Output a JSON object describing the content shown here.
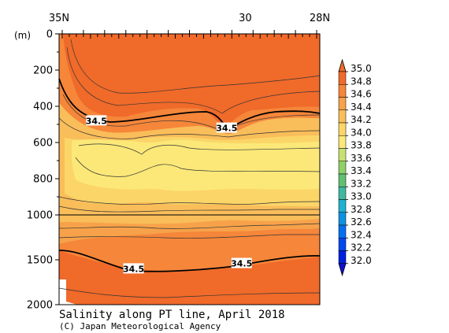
{
  "chart_data": {
    "type": "heatmap",
    "title": "Salinity along PT line, April 2018",
    "credit": "(C) Japan Meteorological Agency",
    "yunit": "(m)",
    "x_ticks": [
      {
        "lat": 35,
        "label": "35N"
      },
      {
        "lat": 30,
        "label": "30"
      },
      {
        "lat": 28,
        "label": "28N"
      }
    ],
    "xlim": [
      35,
      28
    ],
    "ylim": [
      0,
      2000
    ],
    "y_ticks": [
      {
        "depth": 0,
        "label": "0"
      },
      {
        "depth": 200,
        "label": "200"
      },
      {
        "depth": 400,
        "label": "400"
      },
      {
        "depth": 600,
        "label": "600"
      },
      {
        "depth": 800,
        "label": "800"
      },
      {
        "depth": 1000,
        "label": "1000"
      },
      {
        "depth": 1500,
        "label": "1500"
      },
      {
        "depth": 2000,
        "label": "2000"
      }
    ],
    "y_scale_note": "depth axis is stretched: 0-1000 m occupies upper ~2/3, 1000-2000 m the lower ~1/3",
    "colorbar_levels": [
      "35.0",
      "34.8",
      "34.6",
      "34.4",
      "34.2",
      "34.0",
      "33.8",
      "33.6",
      "33.4",
      "33.2",
      "33.0",
      "32.8",
      "32.6",
      "32.4",
      "32.2",
      "32.0"
    ],
    "colorbar_colors": [
      "#f06a2a",
      "#f5863a",
      "#f7a24a",
      "#f9bd5a",
      "#fbd568",
      "#fbe878",
      "#c8e070",
      "#8fd068",
      "#60c070",
      "#40b8a0",
      "#20b0d0",
      "#1090e0",
      "#0070f0",
      "#0048f0",
      "#0020e0"
    ],
    "contour_labels": [
      {
        "text": "34.5",
        "lat": 34.0,
        "depth": 480
      },
      {
        "text": "34.5",
        "lat": 30.5,
        "depth": 520
      },
      {
        "text": "34.5",
        "lat": 33.0,
        "depth": 1600
      },
      {
        "text": "34.5",
        "lat": 30.1,
        "depth": 1540
      }
    ],
    "reference_depth": 1000
  }
}
